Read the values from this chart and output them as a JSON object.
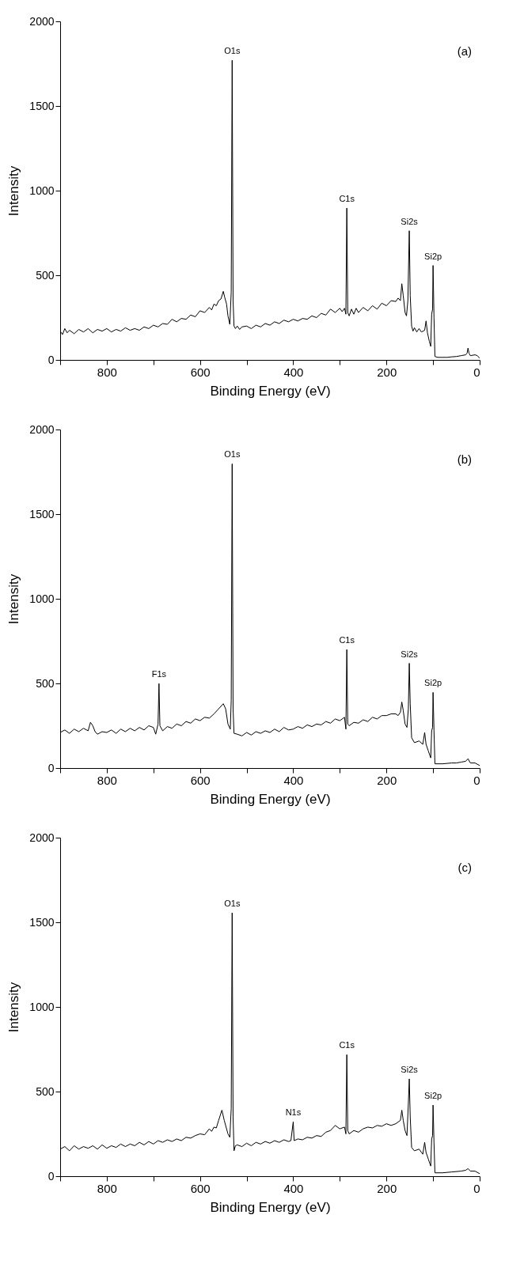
{
  "chart_data": [
    {
      "type": "line",
      "xlabel": "Binding Energy (eV)",
      "ylabel": "Intensity",
      "xlim": [
        900,
        0
      ],
      "ylim": [
        0,
        2000
      ],
      "xticks": [
        {
          "value": 900,
          "label": null
        },
        800,
        {
          "value": 700,
          "label": null
        },
        600,
        {
          "value": 500,
          "label": null
        },
        400,
        {
          "value": 300,
          "label": null
        },
        200,
        {
          "value": 100,
          "label": null
        },
        0
      ],
      "yticks": [
        0,
        500,
        1000,
        1500,
        2000
      ],
      "grid": false,
      "marker": "none",
      "line_style": "solid",
      "annotations": [
        "(a)",
        {
          "text": "O1s",
          "x": 531,
          "y": 1770
        },
        {
          "text": "C1s",
          "x": 285,
          "y": 897
        },
        {
          "text": "Si2s",
          "x": 151,
          "y": 763
        },
        {
          "text": "Si2p",
          "x": 100,
          "y": 558
        }
      ],
      "series": [
        {
          "color": "#000000",
          "x": [
            900,
            895,
            890,
            885,
            880,
            870,
            860,
            850,
            840,
            830,
            820,
            810,
            800,
            790,
            780,
            770,
            760,
            750,
            740,
            730,
            720,
            710,
            700,
            690,
            680,
            670,
            660,
            650,
            640,
            630,
            620,
            610,
            600,
            590,
            580,
            575,
            570,
            565,
            560,
            555,
            550,
            547,
            543,
            540,
            536,
            533,
            531,
            529,
            527,
            524,
            520,
            515,
            510,
            500,
            490,
            480,
            470,
            460,
            450,
            440,
            430,
            420,
            410,
            400,
            390,
            380,
            370,
            360,
            350,
            340,
            330,
            320,
            310,
            300,
            295,
            290,
            287,
            285,
            283,
            280,
            275,
            270,
            265,
            260,
            250,
            240,
            230,
            220,
            210,
            200,
            190,
            180,
            175,
            170,
            167,
            164,
            160,
            157,
            154,
            151,
            149,
            146,
            143,
            140,
            135,
            130,
            125,
            118,
            115,
            112,
            108,
            105,
            103,
            101,
            100,
            98,
            96,
            90,
            80,
            70,
            60,
            50,
            40,
            30,
            27,
            25,
            23,
            20,
            10,
            5,
            0
          ],
          "values": [
            170,
            150,
            185,
            160,
            175,
            155,
            180,
            165,
            185,
            160,
            180,
            170,
            185,
            165,
            180,
            170,
            190,
            175,
            185,
            175,
            195,
            185,
            205,
            195,
            215,
            210,
            240,
            225,
            245,
            240,
            265,
            255,
            290,
            280,
            310,
            295,
            330,
            320,
            350,
            360,
            405,
            370,
            330,
            260,
            210,
            400,
            1770,
            350,
            200,
            185,
            200,
            180,
            195,
            200,
            185,
            205,
            195,
            215,
            205,
            225,
            215,
            235,
            225,
            240,
            230,
            245,
            240,
            260,
            250,
            275,
            265,
            300,
            280,
            305,
            285,
            305,
            270,
            897,
            280,
            260,
            300,
            270,
            305,
            280,
            310,
            290,
            320,
            300,
            335,
            320,
            350,
            345,
            365,
            350,
            450,
            380,
            280,
            260,
            350,
            763,
            380,
            200,
            170,
            190,
            165,
            185,
            165,
            175,
            230,
            160,
            110,
            80,
            270,
            300,
            558,
            250,
            20,
            15,
            15,
            15,
            18,
            20,
            25,
            30,
            40,
            70,
            40,
            25,
            30,
            25,
            10
          ]
        }
      ]
    },
    {
      "type": "line",
      "xlabel": "Binding Energy (eV)",
      "ylabel": "Intensity",
      "xlim": [
        900,
        0
      ],
      "ylim": [
        0,
        2000
      ],
      "xticks": [
        {
          "value": 900,
          "label": null
        },
        800,
        {
          "value": 700,
          "label": null
        },
        600,
        {
          "value": 500,
          "label": null
        },
        400,
        {
          "value": 300,
          "label": null
        },
        200,
        {
          "value": 100,
          "label": null
        },
        0
      ],
      "yticks": [
        0,
        500,
        1000,
        1500,
        2000
      ],
      "grid": false,
      "marker": "none",
      "line_style": "solid",
      "annotations": [
        "(b)",
        {
          "text": "F1s",
          "x": 688,
          "y": 499
        },
        {
          "text": "O1s",
          "x": 531,
          "y": 1797
        },
        {
          "text": "C1s",
          "x": 285,
          "y": 700
        },
        {
          "text": "Si2s",
          "x": 151,
          "y": 619
        },
        {
          "text": "Si2p",
          "x": 100,
          "y": 447
        }
      ],
      "series": [
        {
          "color": "#000000",
          "x": [
            900,
            890,
            880,
            870,
            860,
            850,
            840,
            835,
            830,
            825,
            820,
            810,
            800,
            790,
            780,
            770,
            760,
            750,
            740,
            730,
            720,
            710,
            700,
            695,
            690,
            688,
            686,
            680,
            670,
            660,
            650,
            640,
            630,
            620,
            610,
            600,
            590,
            580,
            570,
            560,
            550,
            545,
            540,
            535,
            533,
            531,
            529,
            527,
            520,
            510,
            500,
            490,
            480,
            470,
            460,
            450,
            440,
            430,
            420,
            410,
            400,
            390,
            380,
            370,
            360,
            350,
            340,
            330,
            320,
            310,
            300,
            290,
            287,
            285,
            283,
            280,
            270,
            260,
            250,
            240,
            230,
            220,
            210,
            200,
            190,
            180,
            175,
            170,
            167,
            164,
            160,
            156,
            153,
            151,
            149,
            146,
            140,
            130,
            122,
            118,
            115,
            110,
            105,
            103,
            101,
            100,
            98,
            96,
            80,
            60,
            50,
            40,
            30,
            25,
            20,
            10,
            0
          ],
          "values": [
            210,
            225,
            205,
            230,
            215,
            235,
            220,
            270,
            250,
            215,
            200,
            215,
            210,
            225,
            205,
            230,
            215,
            235,
            220,
            240,
            225,
            250,
            240,
            200,
            260,
            499,
            250,
            220,
            245,
            235,
            260,
            250,
            275,
            265,
            290,
            280,
            300,
            295,
            320,
            350,
            380,
            350,
            260,
            230,
            400,
            1797,
            350,
            205,
            200,
            190,
            210,
            195,
            215,
            205,
            220,
            210,
            230,
            215,
            240,
            225,
            230,
            245,
            235,
            255,
            245,
            260,
            255,
            275,
            265,
            290,
            280,
            300,
            230,
            700,
            260,
            250,
            270,
            265,
            285,
            275,
            300,
            290,
            310,
            310,
            320,
            320,
            310,
            330,
            390,
            340,
            260,
            240,
            350,
            619,
            380,
            180,
            150,
            160,
            140,
            210,
            140,
            100,
            60,
            220,
            240,
            447,
            220,
            25,
            25,
            30,
            30,
            35,
            40,
            55,
            30,
            30,
            15
          ]
        }
      ]
    },
    {
      "type": "line",
      "xlabel": "Binding Energy (eV)",
      "ylabel": "Intensity",
      "xlim": [
        900,
        0
      ],
      "ylim": [
        0,
        2000
      ],
      "xticks": [
        {
          "value": 900,
          "label": null
        },
        800,
        {
          "value": 700,
          "label": null
        },
        600,
        {
          "value": 500,
          "label": null
        },
        400,
        {
          "value": 300,
          "label": null
        },
        200,
        {
          "value": 100,
          "label": null
        },
        0
      ],
      "yticks": [
        0,
        500,
        1000,
        1500,
        2000
      ],
      "grid": false,
      "marker": "none",
      "line_style": "solid",
      "annotations": [
        "(c)",
        {
          "text": "O1s",
          "x": 531,
          "y": 1556
        },
        {
          "text": "N1s",
          "x": 400,
          "y": 321
        },
        {
          "text": "C1s",
          "x": 285,
          "y": 718
        },
        {
          "text": "Si2s",
          "x": 151,
          "y": 575
        },
        {
          "text": "Si2p",
          "x": 100,
          "y": 420
        }
      ],
      "series": [
        {
          "color": "#000000",
          "x": [
            900,
            890,
            880,
            870,
            860,
            850,
            840,
            830,
            820,
            810,
            800,
            790,
            780,
            770,
            760,
            750,
            740,
            730,
            720,
            710,
            700,
            690,
            680,
            670,
            660,
            650,
            640,
            630,
            620,
            610,
            600,
            590,
            580,
            575,
            570,
            565,
            560,
            553,
            548,
            540,
            536,
            533,
            531,
            529,
            527,
            524,
            520,
            510,
            500,
            490,
            480,
            470,
            460,
            450,
            440,
            430,
            420,
            410,
            405,
            400,
            398,
            390,
            380,
            370,
            360,
            350,
            340,
            330,
            320,
            310,
            300,
            290,
            287,
            285,
            283,
            280,
            270,
            260,
            250,
            240,
            230,
            220,
            210,
            200,
            190,
            180,
            170,
            167,
            164,
            160,
            156,
            153,
            151,
            149,
            146,
            140,
            130,
            122,
            118,
            115,
            110,
            105,
            103,
            101,
            100,
            98,
            96,
            80,
            60,
            40,
            30,
            25,
            20,
            10,
            0
          ],
          "values": [
            160,
            175,
            150,
            180,
            160,
            175,
            165,
            180,
            160,
            185,
            165,
            180,
            170,
            190,
            175,
            190,
            180,
            200,
            185,
            205,
            190,
            210,
            200,
            215,
            205,
            220,
            210,
            230,
            225,
            240,
            250,
            245,
            280,
            265,
            290,
            285,
            330,
            390,
            330,
            250,
            230,
            400,
            1556,
            350,
            150,
            180,
            185,
            175,
            195,
            180,
            200,
            190,
            205,
            195,
            210,
            200,
            215,
            205,
            210,
            321,
            210,
            220,
            215,
            230,
            225,
            240,
            235,
            260,
            270,
            300,
            280,
            290,
            250,
            718,
            270,
            250,
            270,
            260,
            280,
            290,
            285,
            300,
            295,
            310,
            300,
            310,
            330,
            390,
            330,
            270,
            240,
            430,
            575,
            350,
            170,
            150,
            160,
            130,
            200,
            140,
            100,
            60,
            220,
            240,
            420,
            200,
            20,
            20,
            25,
            30,
            35,
            45,
            30,
            30,
            15
          ]
        }
      ]
    }
  ]
}
